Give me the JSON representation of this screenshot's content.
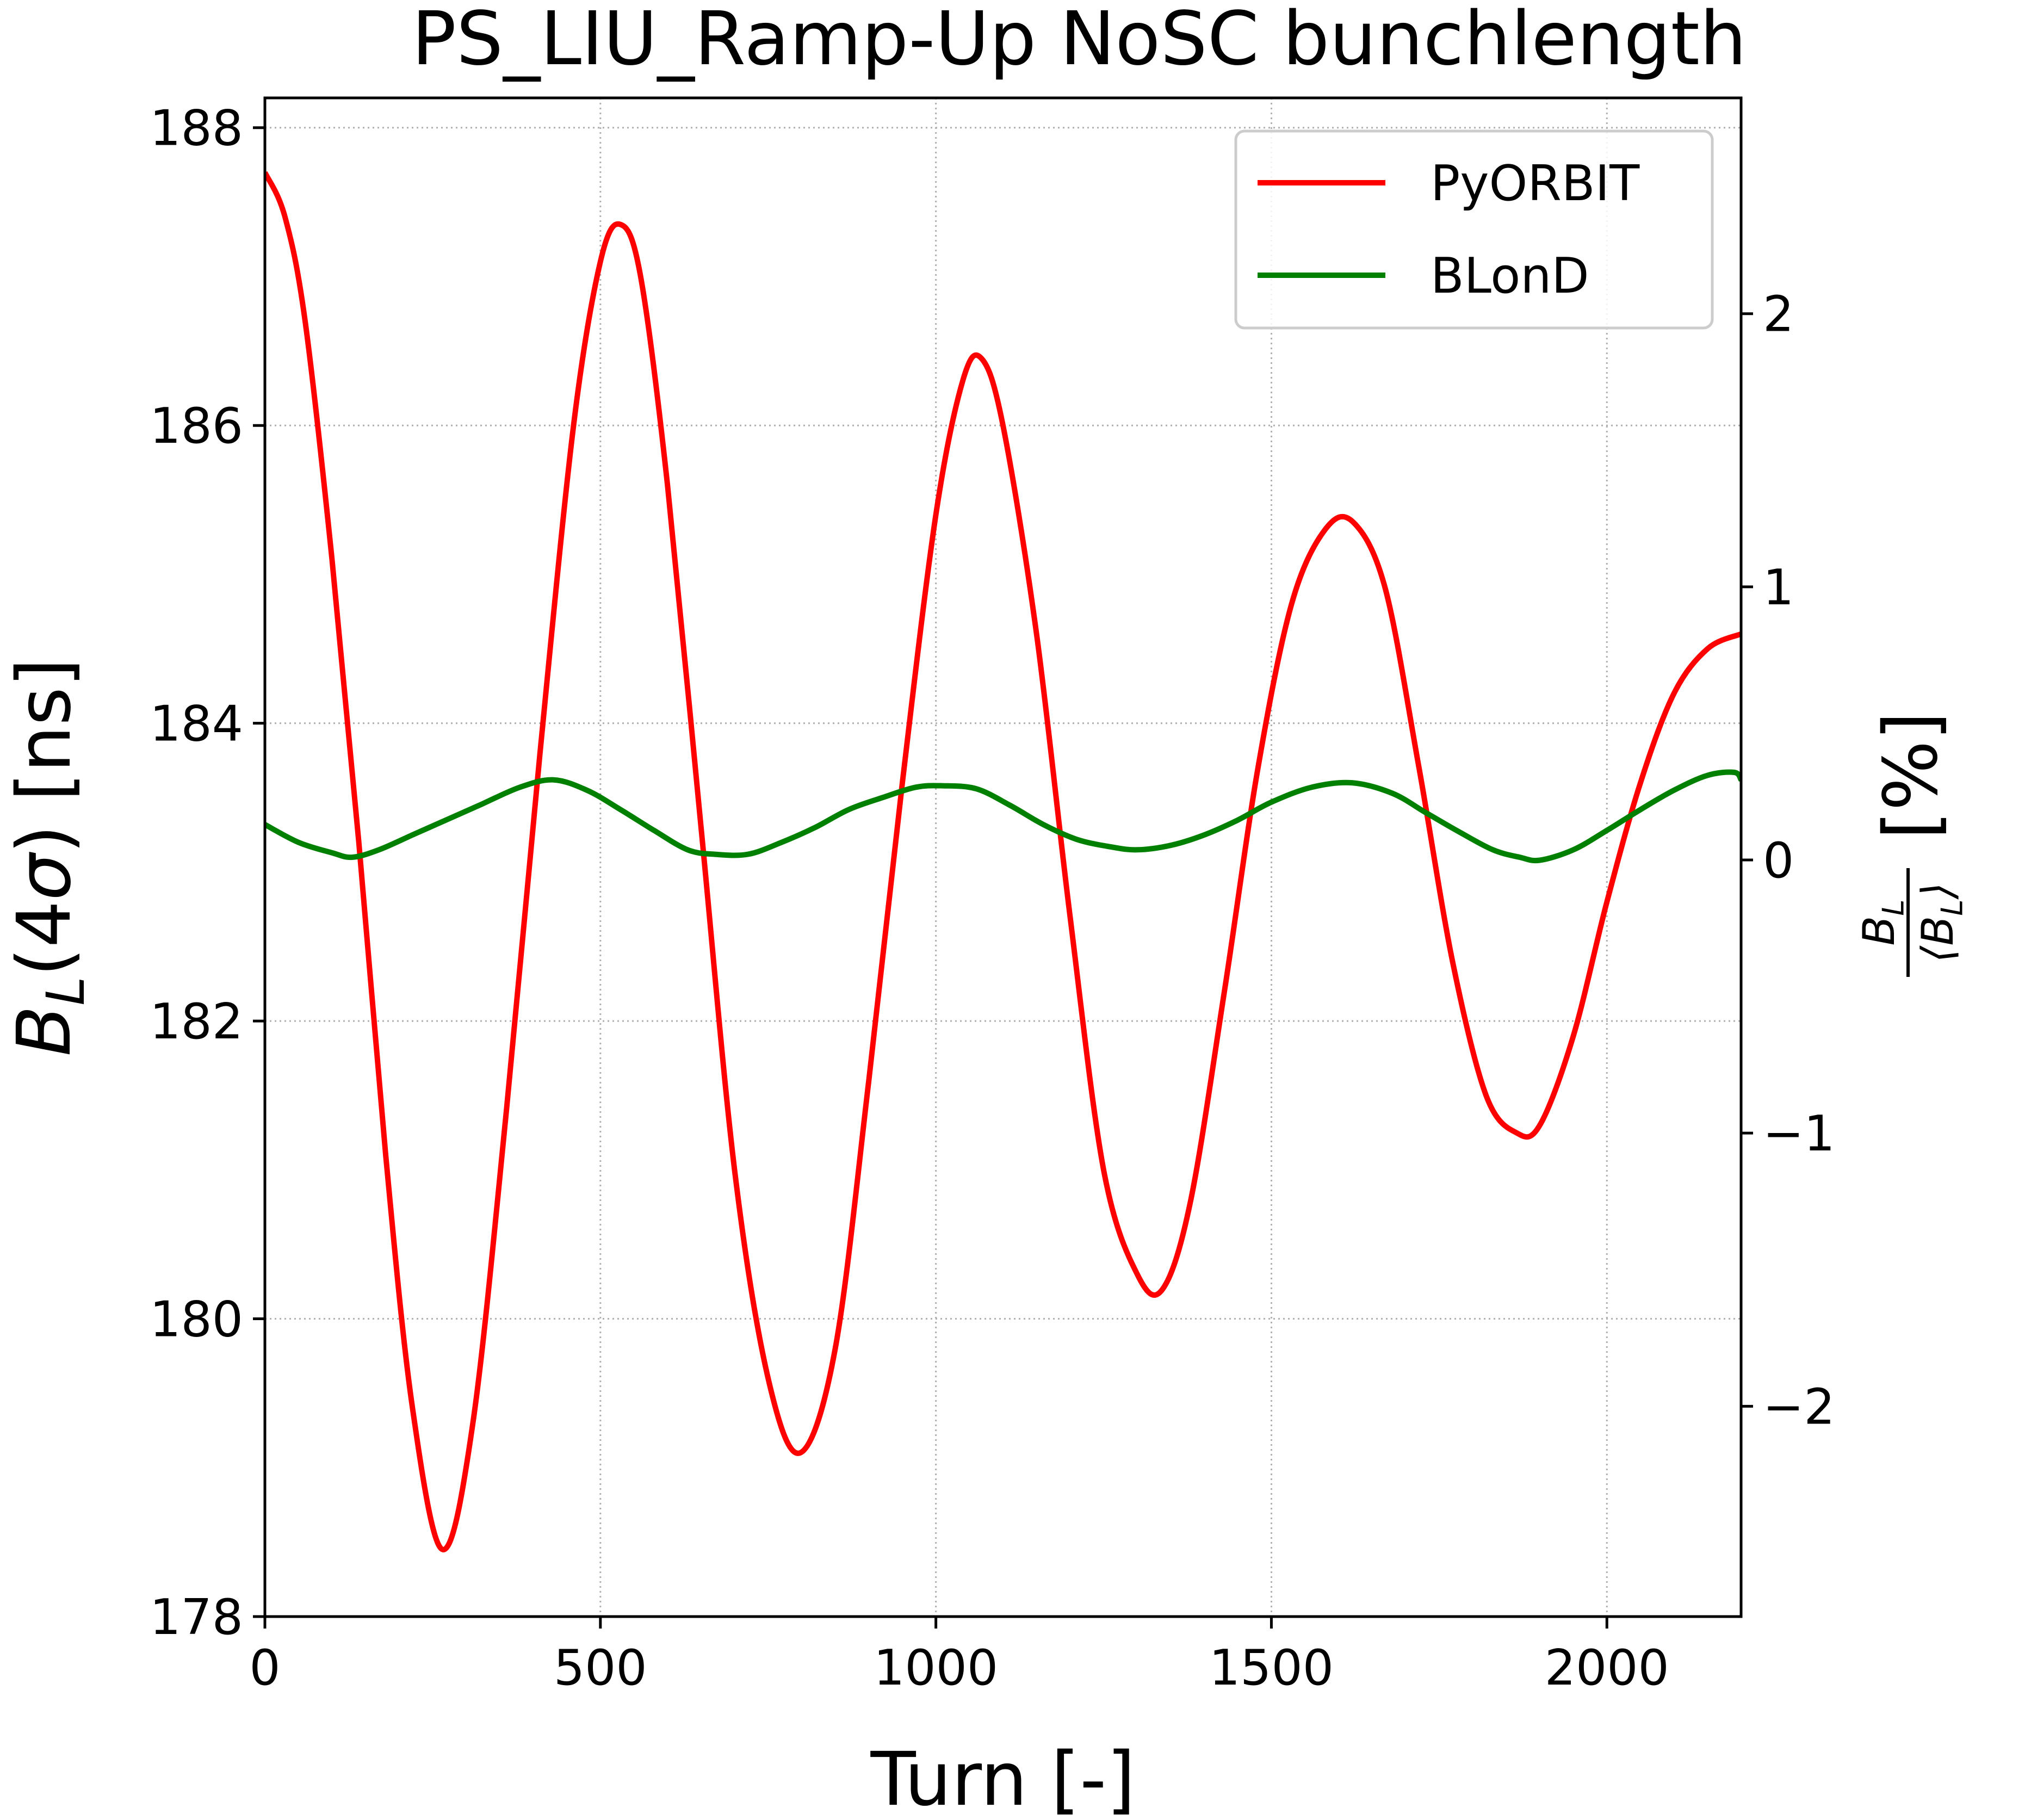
{
  "chart_data": {
    "type": "line",
    "title": "PS_LIU_Ramp-Up NoSC bunchlength",
    "xlabel": "Turn [-]",
    "ylabel": "B_L(4σ) [ns]",
    "ylabel2": "B_L/⟨B_L⟩ [%]",
    "xlim": [
      0,
      2200
    ],
    "ylim": [
      178,
      188.2
    ],
    "ylim2": [
      -2.77,
      2.79
    ],
    "xticks": [
      "0",
      "500",
      "1000",
      "1500",
      "2000"
    ],
    "xtick_values": [
      0,
      500,
      1000,
      1500,
      2000
    ],
    "yticks": [
      "178",
      "180",
      "182",
      "184",
      "186",
      "188"
    ],
    "ytick_values": [
      178,
      180,
      182,
      184,
      186,
      188
    ],
    "yticks2": [
      "−2",
      "−1",
      "0",
      "1",
      "2"
    ],
    "ytick2_values": [
      -2,
      -1,
      0,
      1,
      2
    ],
    "grid": true,
    "legend_position": "top-right",
    "series": [
      {
        "name": "PyORBIT",
        "color": "#ff0000",
        "axis": "left",
        "x": [
          0,
          30,
          60,
          100,
          140,
          180,
          220,
          265,
          310,
          360,
          410,
          460,
          500,
          530,
          560,
          600,
          650,
          700,
          750,
          798,
          850,
          900,
          950,
          1000,
          1040,
          1068,
          1100,
          1150,
          1200,
          1250,
          1300,
          1338,
          1380,
          1430,
          1480,
          1530,
          1580,
          1622,
          1670,
          1720,
          1770,
          1820,
          1865,
          1900,
          1950,
          2000,
          2050,
          2100,
          2150,
          2200
        ],
        "y": [
          187.7,
          187.4,
          186.7,
          185.1,
          183.2,
          181.1,
          179.4,
          178.45,
          179.3,
          181.4,
          183.8,
          186.0,
          187.1,
          187.35,
          187.0,
          185.6,
          183.3,
          181.0,
          179.6,
          179.1,
          179.8,
          181.6,
          183.6,
          185.4,
          186.3,
          186.45,
          186.0,
          184.6,
          182.7,
          181.0,
          180.3,
          180.2,
          180.8,
          182.2,
          183.7,
          184.8,
          185.3,
          185.35,
          184.9,
          183.7,
          182.4,
          181.5,
          181.25,
          181.3,
          181.9,
          182.8,
          183.6,
          184.2,
          184.5,
          184.6
        ]
      },
      {
        "name": "BLonD",
        "color": "#008000",
        "axis": "left",
        "x": [
          0,
          50,
          100,
          130,
          170,
          220,
          270,
          320,
          380,
          430,
          480,
          530,
          580,
          630,
          670,
          720,
          770,
          820,
          870,
          920,
          970,
          1010,
          1060,
          1110,
          1160,
          1210,
          1260,
          1300,
          1350,
          1400,
          1450,
          1500,
          1560,
          1620,
          1680,
          1730,
          1780,
          1830,
          1870,
          1900,
          1950,
          2000,
          2050,
          2100,
          2150,
          2190,
          2200
        ],
        "y": [
          183.32,
          183.2,
          183.13,
          183.1,
          183.15,
          183.25,
          183.35,
          183.45,
          183.57,
          183.62,
          183.55,
          183.42,
          183.28,
          183.15,
          183.12,
          183.12,
          183.2,
          183.3,
          183.42,
          183.5,
          183.57,
          183.58,
          183.56,
          183.45,
          183.32,
          183.22,
          183.17,
          183.15,
          183.18,
          183.25,
          183.35,
          183.47,
          183.57,
          183.6,
          183.53,
          183.4,
          183.27,
          183.15,
          183.1,
          183.08,
          183.15,
          183.28,
          183.42,
          183.55,
          183.65,
          183.67,
          183.62
        ]
      }
    ]
  }
}
